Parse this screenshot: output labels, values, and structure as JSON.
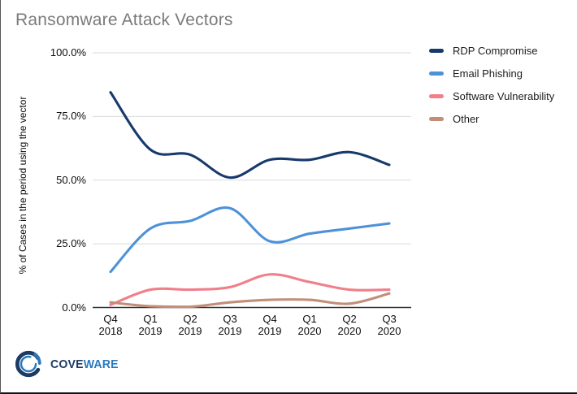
{
  "chart_data": {
    "type": "line",
    "title": "Ransomware Attack Vectors",
    "ylabel": "% of Cases in the period using the vector",
    "xlabel": "",
    "categories": [
      "Q4 2018",
      "Q1 2019",
      "Q2 2019",
      "Q3 2019",
      "Q4 2019",
      "Q1 2020",
      "Q2 2020",
      "Q3 2020"
    ],
    "yticks": [
      {
        "label": "100.0%",
        "value": 100
      },
      {
        "label": "75.0%",
        "value": 75
      },
      {
        "label": "50.0%",
        "value": 50
      },
      {
        "label": "25.0%",
        "value": 25
      },
      {
        "label": "0.0%",
        "value": 0
      }
    ],
    "ylim": [
      0,
      100
    ],
    "grid": true,
    "smooth": true,
    "legend_position": "right",
    "series": [
      {
        "name": "RDP Compromise",
        "color": "#173a6b",
        "values": [
          84.5,
          62,
          60,
          51,
          58,
          58,
          61,
          56
        ]
      },
      {
        "name": "Email Phishing",
        "color": "#4d92d8",
        "values": [
          14,
          31,
          34,
          39,
          26,
          29,
          31,
          33
        ]
      },
      {
        "name": "Software Vulnerability",
        "color": "#f07f8a",
        "values": [
          1,
          7,
          7,
          8,
          13,
          10,
          7,
          7
        ]
      },
      {
        "name": "Other",
        "color": "#c28e79",
        "values": [
          2,
          0.5,
          0.3,
          2,
          3,
          3,
          1.5,
          5.5
        ]
      }
    ]
  },
  "footer": {
    "logo": {
      "icon": "coveware-swirl-icon",
      "text_primary": "COVE",
      "text_secondary": "WARE",
      "color_primary": "#1d3a63",
      "color_secondary": "#2879bd"
    }
  },
  "style_colors": {
    "gridline": "#dadada",
    "zero_axis": "#333333",
    "title_text": "#7a7a7a"
  }
}
